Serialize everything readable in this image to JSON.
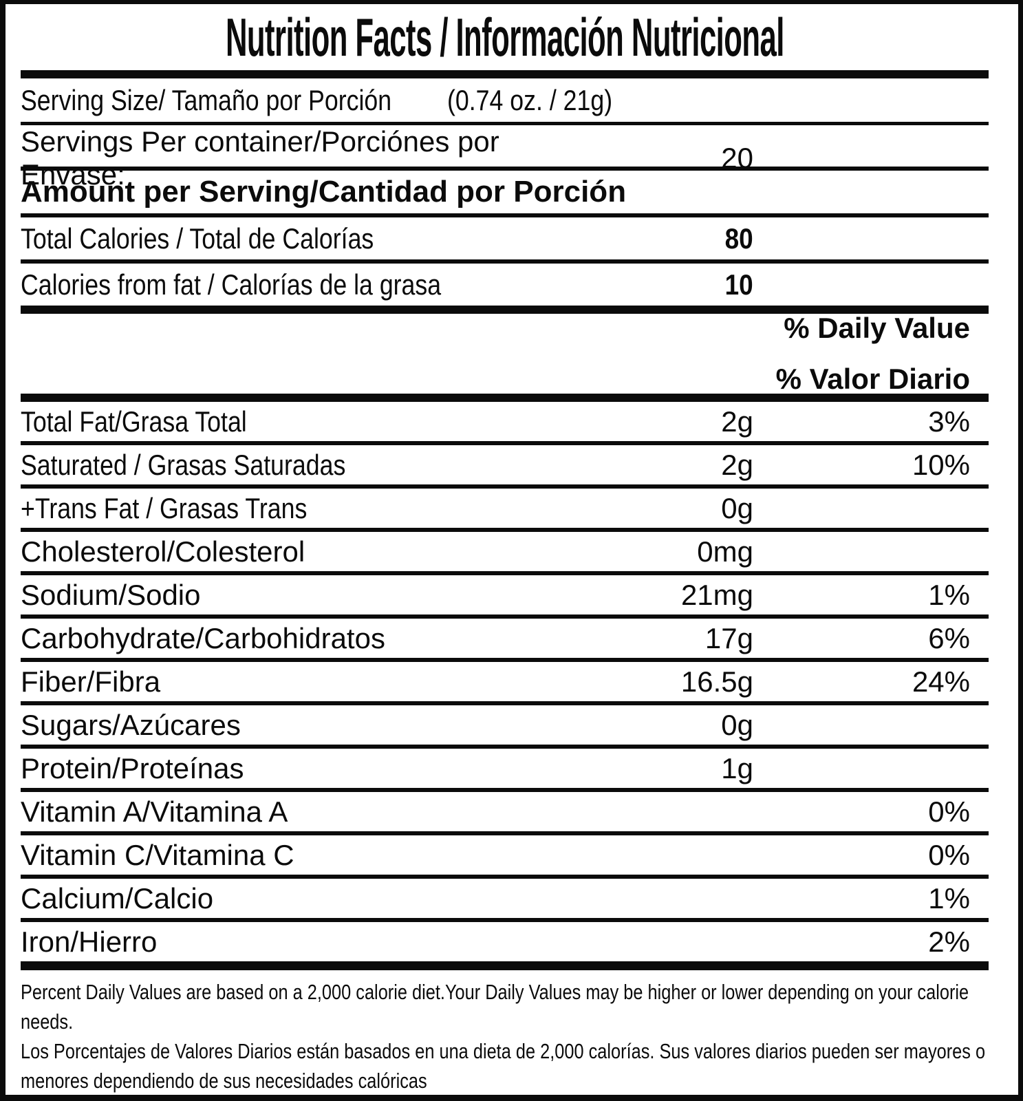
{
  "label": {
    "title": "Nutrition Facts / Información Nutricional",
    "serving": {
      "size_label": "Serving Size/ Tamaño por Porción",
      "size_value": "(0.74 oz. / 21g)",
      "per_container_label": "Servings Per container/Porciónes por Envase:",
      "per_container_value": "20"
    },
    "amount_per_serving_heading": "Amount per Serving/Cantidad por Porción",
    "calories": [
      {
        "label": "Total Calories / Total de Calorías",
        "value": "80"
      },
      {
        "label": "Calories from fat / Calorías de la grasa",
        "value": "10"
      }
    ],
    "daily_value_header": {
      "line1": "% Daily Value",
      "line2": "% Valor Diario"
    },
    "nutrients": [
      {
        "label": "Total Fat/Grasa Total",
        "amount": "2g",
        "dv": "3%"
      },
      {
        "label": "Saturated / Grasas Saturadas",
        "amount": "2g",
        "dv": "10%"
      },
      {
        "label": "+Trans Fat / Grasas Trans",
        "amount": "0g",
        "dv": ""
      },
      {
        "label": "Cholesterol/Colesterol",
        "amount": "0mg",
        "dv": ""
      },
      {
        "label": "Sodium/Sodio",
        "amount": "21mg",
        "dv": "1%"
      },
      {
        "label": "Carbohydrate/Carbohidratos",
        "amount": "17g",
        "dv": "6%"
      },
      {
        "label": "Fiber/Fibra",
        "amount": "16.5g",
        "dv": "24%"
      },
      {
        "label": "Sugars/Azúcares",
        "amount": "0g",
        "dv": ""
      },
      {
        "label": "Protein/Proteínas",
        "amount": "1g",
        "dv": ""
      },
      {
        "label": "Vitamin A/Vitamina A",
        "amount": "",
        "dv": "0%"
      },
      {
        "label": "Vitamin C/Vitamina C",
        "amount": "",
        "dv": "0%"
      },
      {
        "label": "Calcium/Calcio",
        "amount": "",
        "dv": "1%"
      },
      {
        "label": "Iron/Hierro",
        "amount": "",
        "dv": "2%"
      }
    ],
    "footnotes": {
      "en": "Percent Daily Values are based on a 2,000 calorie diet.Your Daily Values may be higher or lower depending on your calorie needs.",
      "es": "Los Porcentajes de Valores Diarios están basados en una dieta de 2,000 calorías. Sus valores diarios pueden ser mayores o menores dependiendo de sus necesidades calóricas"
    },
    "colors": {
      "ink": "#0b0b0b",
      "background": "#ffffff"
    }
  }
}
